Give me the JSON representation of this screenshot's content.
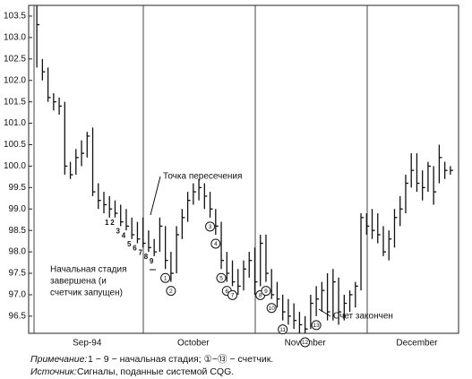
{
  "chart_data": {
    "type": "hlc",
    "ylim": [
      96.1,
      103.75
    ],
    "yticks": [
      {
        "value": 96.5,
        "label": "96.5"
      },
      {
        "value": 97,
        "label": "97.0"
      },
      {
        "value": 97.5,
        "label": "97.5"
      },
      {
        "value": 98,
        "label": "98.0"
      },
      {
        "value": 98.5,
        "label": "98.5"
      },
      {
        "value": 99,
        "label": "99.0"
      },
      {
        "value": 99.5,
        "label": "99.5"
      },
      {
        "value": 100,
        "label": "100.0"
      },
      {
        "value": 100.5,
        "label": "100.5"
      },
      {
        "value": 101,
        "label": "101.0"
      },
      {
        "value": 101.5,
        "label": "101.5"
      },
      {
        "value": 102,
        "label": "102.0"
      },
      {
        "value": 102.5,
        "label": "102.5"
      },
      {
        "value": 103,
        "label": "103.0"
      },
      {
        "value": 103.5,
        "label": "103.5"
      }
    ],
    "categories": [
      null,
      null,
      null,
      null,
      null,
      null,
      null,
      null,
      null,
      "Sep-94",
      null,
      null,
      null,
      null,
      null,
      null,
      null,
      null,
      null,
      null,
      null,
      null,
      null,
      null,
      null,
      null,
      null,
      null,
      "October",
      null,
      null,
      null,
      null,
      null,
      null,
      null,
      null,
      null,
      null,
      null,
      null,
      null,
      null,
      null,
      null,
      null,
      null,
      null,
      "November",
      null,
      null,
      null,
      null,
      null,
      null,
      null,
      null,
      null,
      null,
      null,
      null,
      null,
      null,
      null,
      null,
      null,
      null,
      null,
      "December",
      null,
      null,
      null,
      null,
      null,
      null
    ],
    "high": [
      103.75,
      102.5,
      102.3,
      101.7,
      101.6,
      101.5,
      100.1,
      100.4,
      100.6,
      100.8,
      100.9,
      99.6,
      99.4,
      99.3,
      99.2,
      99.1,
      99.0,
      98.8,
      98.7,
      98.8,
      98.5,
      98.3,
      98.8,
      98.6,
      98.0,
      98.6,
      99.0,
      99.4,
      99.6,
      99.7,
      99.6,
      99.4,
      99.0,
      98.7,
      98.0,
      97.8,
      97.6,
      97.8,
      98.0,
      98.1,
      98.4,
      98.4,
      97.6,
      97.3,
      97.0,
      96.9,
      96.8,
      96.6,
      96.5,
      97.0,
      97.2,
      97.3,
      97.5,
      97.6,
      97.4,
      97.0,
      97.1,
      97.3,
      98.9,
      98.9,
      99.0,
      98.9,
      98.6,
      98.5,
      99.0,
      99.3,
      99.8,
      100.3,
      100.3,
      99.9,
      100.1,
      100.0,
      100.5,
      100.1,
      100.0
    ],
    "low": [
      102.3,
      102.0,
      101.5,
      101.3,
      101.2,
      99.8,
      99.7,
      99.8,
      100.0,
      100.2,
      99.3,
      99.0,
      98.9,
      98.8,
      98.8,
      98.6,
      98.5,
      98.3,
      98.2,
      98.1,
      98.0,
      97.9,
      98.0,
      97.6,
      97.3,
      97.5,
      98.3,
      98.7,
      99.1,
      99.2,
      99.0,
      98.8,
      98.4,
      97.6,
      97.3,
      97.2,
      97.0,
      97.1,
      97.4,
      97.0,
      97.2,
      97.3,
      96.9,
      96.7,
      96.4,
      96.3,
      96.2,
      96.1,
      96.1,
      96.2,
      96.5,
      96.6,
      96.4,
      96.4,
      96.3,
      96.4,
      96.6,
      96.7,
      97.1,
      98.4,
      98.3,
      98.2,
      97.9,
      97.8,
      98.1,
      98.6,
      98.9,
      99.5,
      99.4,
      99.2,
      99.4,
      99.1,
      99.6,
      99.7,
      99.8
    ],
    "close": [
      103.3,
      102.2,
      101.6,
      101.5,
      101.4,
      100.0,
      99.8,
      100.2,
      100.3,
      100.7,
      99.4,
      99.2,
      99.1,
      99.0,
      98.9,
      98.7,
      98.6,
      98.4,
      98.3,
      98.2,
      98.1,
      98.0,
      98.6,
      97.8,
      97.5,
      98.4,
      98.8,
      99.2,
      99.4,
      99.5,
      99.3,
      99.0,
      98.6,
      97.8,
      97.5,
      97.3,
      97.2,
      97.6,
      97.8,
      97.3,
      98.2,
      97.5,
      97.0,
      96.9,
      96.6,
      96.5,
      96.4,
      96.3,
      96.2,
      96.8,
      96.9,
      97.1,
      96.6,
      97.3,
      96.6,
      96.8,
      97.0,
      97.2,
      98.8,
      98.6,
      98.5,
      98.4,
      98.0,
      98.3,
      98.8,
      99.0,
      99.6,
      99.9,
      99.6,
      99.5,
      100.0,
      99.4,
      100.2,
      99.9,
      99.9
    ],
    "setup": [
      null,
      null,
      null,
      null,
      null,
      null,
      null,
      null,
      null,
      null,
      null,
      null,
      null,
      1,
      2,
      3,
      4,
      5,
      6,
      7,
      8,
      9,
      null,
      null,
      null,
      null,
      null,
      null,
      null,
      null,
      null,
      null,
      null,
      null,
      null,
      null,
      null,
      null,
      null,
      null,
      null,
      null,
      null,
      null,
      null,
      null,
      null,
      null,
      null,
      null,
      null,
      null,
      null,
      null,
      null,
      null,
      null,
      null,
      null,
      null,
      null,
      null,
      null,
      null,
      null,
      null,
      null,
      null,
      null,
      null,
      null,
      null,
      null,
      null,
      null
    ],
    "countdown": [
      null,
      null,
      null,
      null,
      null,
      null,
      null,
      null,
      null,
      null,
      null,
      null,
      null,
      null,
      null,
      null,
      null,
      null,
      null,
      null,
      null,
      null,
      null,
      1,
      2,
      null,
      null,
      null,
      null,
      null,
      null,
      3,
      4,
      5,
      6,
      7,
      null,
      null,
      null,
      null,
      8,
      9,
      10,
      null,
      11,
      null,
      null,
      null,
      12,
      null,
      13,
      null,
      null,
      null,
      null,
      null,
      null,
      null,
      null,
      null,
      null,
      null,
      null,
      null,
      null,
      null,
      null,
      null,
      null,
      null,
      null,
      null,
      null,
      null,
      null
    ],
    "annotations": [
      {
        "lines": [
          "Точка пересечения"
        ]
      },
      {
        "lines": [
          "Начальная стадия",
          "завершена (и",
          "счетчик запущен)"
        ]
      },
      {
        "lines": [
          "Счет закончен"
        ]
      }
    ],
    "note_label": "Примечание:",
    "note_text": "1 − 9 − начальная стадия;  ①−⑬ − счетчик.",
    "source_label": "Источник:",
    "source_text": "Сигналы, поданные системой CQG."
  }
}
